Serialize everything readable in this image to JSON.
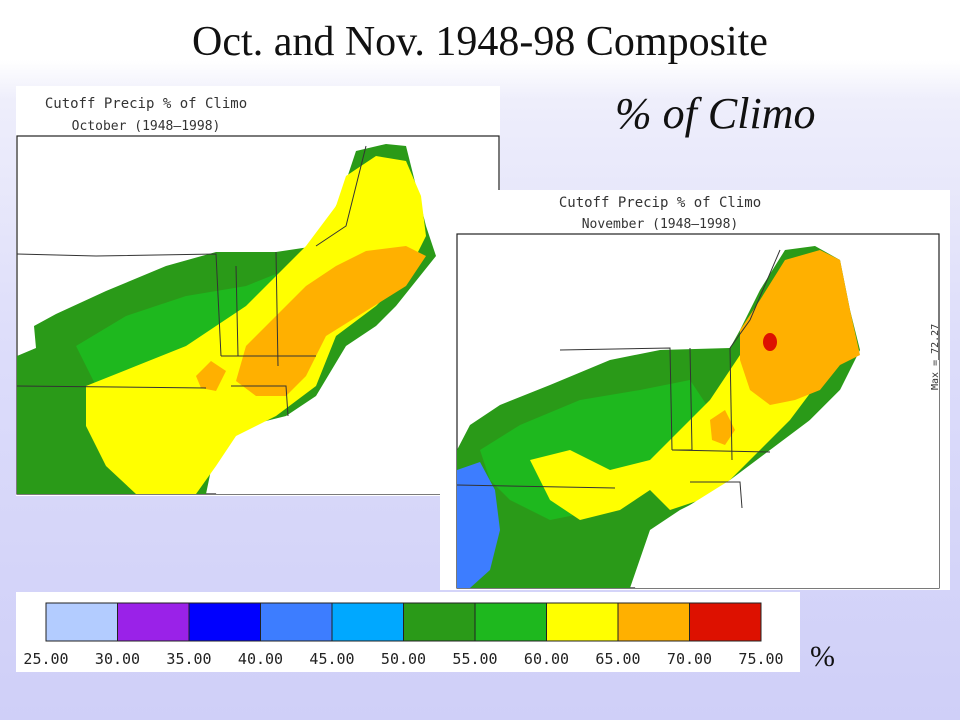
{
  "title": "Oct. and Nov. 1948-98 Composite",
  "subtitle": "% of Climo",
  "maps": [
    {
      "title": "Cutoff Precip % of Climo",
      "subtitle": "October (1948–1998)"
    },
    {
      "title": "Cutoff Precip % of Climo",
      "subtitle": "November (1948–1998)",
      "max_label": "Max = 72.27"
    }
  ],
  "legend": {
    "unit": "%",
    "ticks": [
      "25.00",
      "30.00",
      "35.00",
      "40.00",
      "45.00",
      "50.00",
      "55.00",
      "60.00",
      "65.00",
      "70.00",
      "75.00"
    ],
    "colors": [
      "#b3ccff",
      "#9a22e8",
      "#0000ff",
      "#3d7dff",
      "#00a8ff",
      "#2a9a18",
      "#1eb81e",
      "#ffff00",
      "#ffb000",
      "#dd1100"
    ]
  }
}
